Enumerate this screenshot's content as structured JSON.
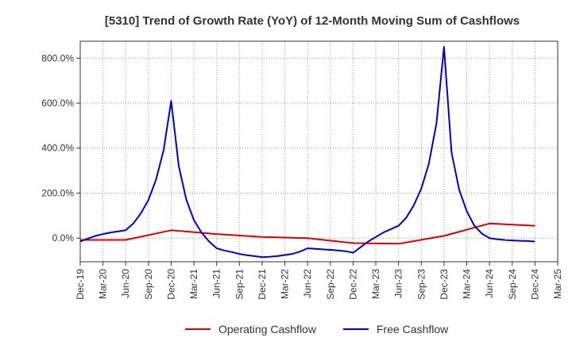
{
  "chart_data": {
    "type": "line",
    "title": "[5310]  Trend of Growth Rate (YoY) of 12-Month Moving Sum of Cashflows",
    "xlabel": "",
    "ylabel": "",
    "x_tick_labels": [
      "Dec-19",
      "Mar-20",
      "Jun-20",
      "Sep-20",
      "Dec-20",
      "Mar-21",
      "Jun-21",
      "Sep-21",
      "Dec-21",
      "Mar-22",
      "Jun-22",
      "Sep-22",
      "Dec-22",
      "Mar-23",
      "Jun-23",
      "Sep-23",
      "Dec-23",
      "Mar-24",
      "Jun-24",
      "Sep-24",
      "Dec-24",
      "Mar-25"
    ],
    "y_ticks": [
      0,
      200,
      400,
      600,
      800
    ],
    "y_tick_labels": [
      "0.0%",
      "200.0%",
      "400.0%",
      "600.0%",
      "800.0%"
    ],
    "ylim": [
      -105,
      875
    ],
    "grid": true,
    "legend": "bottom",
    "series": [
      {
        "name": "Operating Cashflow",
        "color": "#dd0000",
        "points": [
          [
            0,
            -8
          ],
          [
            3,
            -8
          ],
          [
            6,
            -8
          ],
          [
            12,
            35
          ],
          [
            18,
            18
          ],
          [
            24,
            5
          ],
          [
            30,
            0
          ],
          [
            36,
            -22
          ],
          [
            42,
            -25
          ],
          [
            48,
            10
          ],
          [
            54,
            65
          ],
          [
            60,
            55
          ]
        ]
      },
      {
        "name": "Free Cashflow",
        "color": "#0000cc",
        "points": [
          [
            0,
            -15
          ],
          [
            1,
            -2
          ],
          [
            2,
            10
          ],
          [
            3,
            18
          ],
          [
            4,
            25
          ],
          [
            5,
            30
          ],
          [
            6,
            35
          ],
          [
            7,
            65
          ],
          [
            8,
            110
          ],
          [
            9,
            170
          ],
          [
            10,
            260
          ],
          [
            11,
            390
          ],
          [
            12,
            610
          ],
          [
            13,
            320
          ],
          [
            14,
            170
          ],
          [
            15,
            80
          ],
          [
            16,
            25
          ],
          [
            17,
            -15
          ],
          [
            18,
            -45
          ],
          [
            19,
            -55
          ],
          [
            20,
            -62
          ],
          [
            21,
            -70
          ],
          [
            22,
            -76
          ],
          [
            23,
            -80
          ],
          [
            24,
            -85
          ],
          [
            25,
            -83
          ],
          [
            26,
            -80
          ],
          [
            27,
            -75
          ],
          [
            28,
            -70
          ],
          [
            29,
            -60
          ],
          [
            30,
            -45
          ],
          [
            31,
            -48
          ],
          [
            32,
            -50
          ],
          [
            33,
            -52
          ],
          [
            34,
            -55
          ],
          [
            35,
            -58
          ],
          [
            36,
            -65
          ],
          [
            37,
            -40
          ],
          [
            38,
            -15
          ],
          [
            39,
            5
          ],
          [
            40,
            25
          ],
          [
            41,
            40
          ],
          [
            42,
            55
          ],
          [
            43,
            90
          ],
          [
            44,
            145
          ],
          [
            45,
            220
          ],
          [
            46,
            330
          ],
          [
            47,
            510
          ],
          [
            48,
            850
          ],
          [
            49,
            380
          ],
          [
            50,
            215
          ],
          [
            51,
            120
          ],
          [
            52,
            55
          ],
          [
            53,
            20
          ],
          [
            54,
            0
          ],
          [
            55,
            -5
          ],
          [
            56,
            -8
          ],
          [
            57,
            -10
          ],
          [
            58,
            -12
          ],
          [
            59,
            -13
          ],
          [
            60,
            -15
          ]
        ]
      }
    ]
  }
}
